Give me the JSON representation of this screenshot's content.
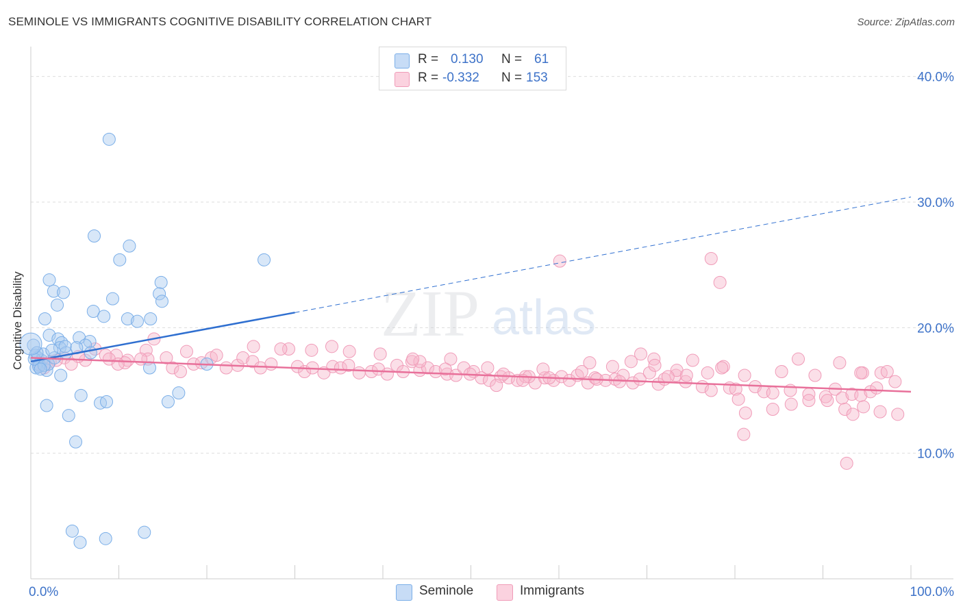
{
  "title": "SEMINOLE VS IMMIGRANTS COGNITIVE DISABILITY CORRELATION CHART",
  "source": "Source: ZipAtlas.com",
  "watermark": {
    "zip": "ZIP",
    "atlas": "atlas"
  },
  "legend_top": {
    "rows": [
      {
        "r_label": "R =",
        "r_value": "0.130",
        "n_label": "N =",
        "n_value": "61",
        "color": "#a9c9f0"
      },
      {
        "r_label": "R =",
        "r_value": "-0.332",
        "n_label": "N =",
        "n_value": "153",
        "color": "#f7b8cc"
      }
    ]
  },
  "legend_bottom": [
    {
      "label": "Seminole",
      "color": "#a9c9f0"
    },
    {
      "label": "Immigrants",
      "color": "#f7b8cc"
    }
  ],
  "chart_data": {
    "type": "scatter",
    "title": "SEMINOLE VS IMMIGRANTS COGNITIVE DISABILITY CORRELATION CHART",
    "xlabel": "",
    "ylabel": "Cognitive Disability",
    "xlim": [
      0,
      100
    ],
    "ylim": [
      0,
      42
    ],
    "x_tick_labels": [
      "0.0%",
      "100.0%"
    ],
    "y_ticks": [
      10,
      20,
      30,
      40
    ],
    "y_tick_labels": [
      "10.0%",
      "20.0%",
      "30.0%",
      "40.0%"
    ],
    "grid": "horizontal dashed",
    "legend_position": "top-center",
    "series": [
      {
        "name": "Seminole",
        "color": "#7aaee8",
        "trend": {
          "x0": 0,
          "y0": 17.3,
          "x1": 30,
          "y1": 21.2,
          "dashed_to_x": 100,
          "dashed_to_y": 30.4,
          "color": "#2f6fd0"
        },
        "points": [
          [
            8.9,
            35.0
          ],
          [
            7.2,
            27.3
          ],
          [
            11.2,
            26.5
          ],
          [
            10.1,
            25.4
          ],
          [
            26.5,
            25.4
          ],
          [
            2.1,
            23.8
          ],
          [
            14.8,
            23.6
          ],
          [
            2.6,
            22.9
          ],
          [
            3.7,
            22.8
          ],
          [
            14.6,
            22.7
          ],
          [
            9.3,
            22.3
          ],
          [
            14.9,
            22.1
          ],
          [
            3.0,
            21.8
          ],
          [
            7.1,
            21.3
          ],
          [
            8.3,
            20.9
          ],
          [
            1.6,
            20.7
          ],
          [
            11.0,
            20.7
          ],
          [
            13.6,
            20.7
          ],
          [
            12.1,
            20.5
          ],
          [
            2.1,
            19.4
          ],
          [
            3.1,
            19.1
          ],
          [
            5.5,
            19.2
          ],
          [
            6.7,
            18.9
          ],
          [
            3.5,
            18.8
          ],
          [
            3.3,
            18.4
          ],
          [
            6.2,
            18.6
          ],
          [
            5.2,
            18.4
          ],
          [
            4.0,
            18.0
          ],
          [
            0.3,
            18.6
          ],
          [
            0.5,
            17.8
          ],
          [
            0.8,
            17.6
          ],
          [
            1.2,
            17.4
          ],
          [
            1.0,
            17.0
          ],
          [
            0.6,
            16.8
          ],
          [
            1.8,
            16.6
          ],
          [
            2.0,
            17.1
          ],
          [
            3.4,
            16.2
          ],
          [
            2.7,
            17.6
          ],
          [
            0.9,
            16.9
          ],
          [
            1.4,
            17.9
          ],
          [
            13.5,
            16.8
          ],
          [
            20.0,
            17.1
          ],
          [
            5.7,
            14.6
          ],
          [
            7.9,
            14.0
          ],
          [
            8.6,
            14.1
          ],
          [
            15.6,
            14.1
          ],
          [
            16.8,
            14.8
          ],
          [
            1.8,
            13.8
          ],
          [
            4.3,
            13.0
          ],
          [
            5.1,
            10.9
          ],
          [
            4.7,
            3.8
          ],
          [
            5.6,
            2.9
          ],
          [
            8.5,
            3.2
          ],
          [
            12.9,
            3.7
          ],
          [
            0.4,
            17.5
          ],
          [
            1.5,
            17.0
          ],
          [
            2.4,
            18.2
          ],
          [
            6.8,
            18.0
          ],
          [
            0.7,
            18.0
          ],
          [
            3.9,
            18.5
          ],
          [
            1.1,
            16.7
          ]
        ]
      },
      {
        "name": "Immigrants",
        "color": "#f09bb8",
        "trend": {
          "x0": 0,
          "y0": 17.6,
          "x1": 100,
          "y1": 14.9,
          "color": "#e8709a"
        },
        "points": [
          [
            60.1,
            25.3
          ],
          [
            77.3,
            25.5
          ],
          [
            78.3,
            23.6
          ],
          [
            14.0,
            19.1
          ],
          [
            34.2,
            18.5
          ],
          [
            29.3,
            18.3
          ],
          [
            28.4,
            18.3
          ],
          [
            13.1,
            18.2
          ],
          [
            7.3,
            18.3
          ],
          [
            9.7,
            17.8
          ],
          [
            17.7,
            18.1
          ],
          [
            8.5,
            17.8
          ],
          [
            20.5,
            17.6
          ],
          [
            21.1,
            17.8
          ],
          [
            15.4,
            17.6
          ],
          [
            13.3,
            17.5
          ],
          [
            11.0,
            17.4
          ],
          [
            12.5,
            17.5
          ],
          [
            10.7,
            17.2
          ],
          [
            6.2,
            17.4
          ],
          [
            5.4,
            17.7
          ],
          [
            3.8,
            17.6
          ],
          [
            4.6,
            17.1
          ],
          [
            2.2,
            17.3
          ],
          [
            0.9,
            17.1
          ],
          [
            1.5,
            16.8
          ],
          [
            2.9,
            17.4
          ],
          [
            8.9,
            17.5
          ],
          [
            9.9,
            17.1
          ],
          [
            16.1,
            16.8
          ],
          [
            17.0,
            16.5
          ],
          [
            18.5,
            17.1
          ],
          [
            19.4,
            17.2
          ],
          [
            22.2,
            16.8
          ],
          [
            23.5,
            17.0
          ],
          [
            24.1,
            17.6
          ],
          [
            25.2,
            17.3
          ],
          [
            26.1,
            16.8
          ],
          [
            27.3,
            17.1
          ],
          [
            30.3,
            16.9
          ],
          [
            31.1,
            16.5
          ],
          [
            32.0,
            16.8
          ],
          [
            33.3,
            16.4
          ],
          [
            34.3,
            16.9
          ],
          [
            35.2,
            16.8
          ],
          [
            36.1,
            17.0
          ],
          [
            37.3,
            16.4
          ],
          [
            38.7,
            16.5
          ],
          [
            39.5,
            16.7
          ],
          [
            40.5,
            16.3
          ],
          [
            41.6,
            17.0
          ],
          [
            42.3,
            16.5
          ],
          [
            43.3,
            17.3
          ],
          [
            44.2,
            16.6
          ],
          [
            45.1,
            16.8
          ],
          [
            46.0,
            16.5
          ],
          [
            47.3,
            16.3
          ],
          [
            48.3,
            16.2
          ],
          [
            49.2,
            16.8
          ],
          [
            50.3,
            16.5
          ],
          [
            51.2,
            16.0
          ],
          [
            52.1,
            15.8
          ],
          [
            53.4,
            16.1
          ],
          [
            54.3,
            16.0
          ],
          [
            55.3,
            15.8
          ],
          [
            56.2,
            16.1
          ],
          [
            57.3,
            15.6
          ],
          [
            58.4,
            16.0
          ],
          [
            59.4,
            15.8
          ],
          [
            60.3,
            16.1
          ],
          [
            61.2,
            15.8
          ],
          [
            62.1,
            16.2
          ],
          [
            63.3,
            15.6
          ],
          [
            64.1,
            16.0
          ],
          [
            65.3,
            15.8
          ],
          [
            66.4,
            15.9
          ],
          [
            67.3,
            16.2
          ],
          [
            68.4,
            15.6
          ],
          [
            69.2,
            15.9
          ],
          [
            70.3,
            16.4
          ],
          [
            71.3,
            15.5
          ],
          [
            72.0,
            15.9
          ],
          [
            73.3,
            16.2
          ],
          [
            74.4,
            15.7
          ],
          [
            76.3,
            15.3
          ],
          [
            77.3,
            15.0
          ],
          [
            79.4,
            15.2
          ],
          [
            80.1,
            15.1
          ],
          [
            82.3,
            15.3
          ],
          [
            83.3,
            14.9
          ],
          [
            84.3,
            14.8
          ],
          [
            86.3,
            15.0
          ],
          [
            88.4,
            14.7
          ],
          [
            90.3,
            14.5
          ],
          [
            91.4,
            15.1
          ],
          [
            92.2,
            14.4
          ],
          [
            93.3,
            14.7
          ],
          [
            94.3,
            14.6
          ],
          [
            95.4,
            14.9
          ],
          [
            96.1,
            15.2
          ],
          [
            44.2,
            17.3
          ],
          [
            47.7,
            17.5
          ],
          [
            51.9,
            16.8
          ],
          [
            53.7,
            16.3
          ],
          [
            56.6,
            16.1
          ],
          [
            58.2,
            16.7
          ],
          [
            62.6,
            16.5
          ],
          [
            64.3,
            15.9
          ],
          [
            66.1,
            16.9
          ],
          [
            68.2,
            17.3
          ],
          [
            70.8,
            17.5
          ],
          [
            73.4,
            16.6
          ],
          [
            75.2,
            17.4
          ],
          [
            76.9,
            16.4
          ],
          [
            78.7,
            16.9
          ],
          [
            81.1,
            16.2
          ],
          [
            85.3,
            16.5
          ],
          [
            87.2,
            17.5
          ],
          [
            89.1,
            16.2
          ],
          [
            91.9,
            17.2
          ],
          [
            94.5,
            16.4
          ],
          [
            25.3,
            18.5
          ],
          [
            31.9,
            18.2
          ],
          [
            36.2,
            18.1
          ],
          [
            39.7,
            17.9
          ],
          [
            43.4,
            17.5
          ],
          [
            47.1,
            16.7
          ],
          [
            49.9,
            16.3
          ],
          [
            52.9,
            15.4
          ],
          [
            55.9,
            15.8
          ],
          [
            58.9,
            16.0
          ],
          [
            63.5,
            17.2
          ],
          [
            66.9,
            15.7
          ],
          [
            69.3,
            17.9
          ],
          [
            70.9,
            17.0
          ],
          [
            72.4,
            16.1
          ],
          [
            74.5,
            16.2
          ],
          [
            78.5,
            16.8
          ],
          [
            80.4,
            14.3
          ],
          [
            84.3,
            13.5
          ],
          [
            86.4,
            13.9
          ],
          [
            88.4,
            14.2
          ],
          [
            90.5,
            14.2
          ],
          [
            92.5,
            13.5
          ],
          [
            94.6,
            13.7
          ],
          [
            96.5,
            13.3
          ],
          [
            98.5,
            13.1
          ],
          [
            81.0,
            11.5
          ],
          [
            92.7,
            9.2
          ],
          [
            81.2,
            13.2
          ],
          [
            93.4,
            13.1
          ],
          [
            94.3,
            16.4
          ],
          [
            96.6,
            16.4
          ],
          [
            97.3,
            16.5
          ],
          [
            98.2,
            15.7
          ]
        ]
      }
    ]
  }
}
